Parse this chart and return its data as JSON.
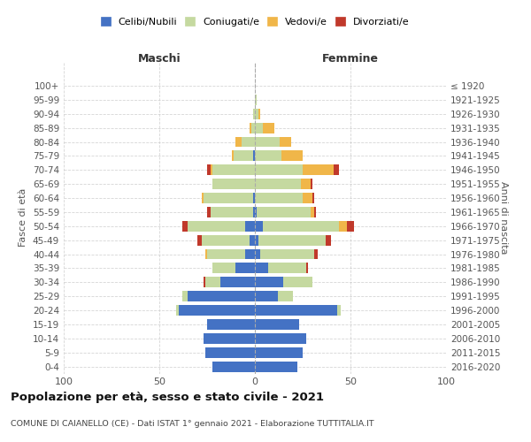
{
  "age_groups": [
    "0-4",
    "5-9",
    "10-14",
    "15-19",
    "20-24",
    "25-29",
    "30-34",
    "35-39",
    "40-44",
    "45-49",
    "50-54",
    "55-59",
    "60-64",
    "65-69",
    "70-74",
    "75-79",
    "80-84",
    "85-89",
    "90-94",
    "95-99",
    "100+"
  ],
  "birth_years": [
    "2016-2020",
    "2011-2015",
    "2006-2010",
    "2001-2005",
    "1996-2000",
    "1991-1995",
    "1986-1990",
    "1981-1985",
    "1976-1980",
    "1971-1975",
    "1966-1970",
    "1961-1965",
    "1956-1960",
    "1951-1955",
    "1946-1950",
    "1941-1945",
    "1936-1940",
    "1931-1935",
    "1926-1930",
    "1921-1925",
    "≤ 1920"
  ],
  "maschi": {
    "celibi": [
      22,
      26,
      27,
      25,
      40,
      35,
      18,
      10,
      5,
      3,
      5,
      1,
      1,
      0,
      0,
      1,
      0,
      0,
      0,
      0,
      0
    ],
    "coniugati": [
      0,
      0,
      0,
      0,
      1,
      3,
      8,
      12,
      20,
      25,
      30,
      22,
      26,
      22,
      22,
      10,
      7,
      2,
      1,
      0,
      0
    ],
    "vedovi": [
      0,
      0,
      0,
      0,
      0,
      0,
      0,
      0,
      1,
      0,
      0,
      0,
      1,
      0,
      1,
      1,
      3,
      1,
      0,
      0,
      0
    ],
    "divorziati": [
      0,
      0,
      0,
      0,
      0,
      0,
      1,
      0,
      0,
      2,
      3,
      2,
      0,
      0,
      2,
      0,
      0,
      0,
      0,
      0,
      0
    ]
  },
  "femmine": {
    "celibi": [
      22,
      25,
      27,
      23,
      43,
      12,
      15,
      7,
      3,
      2,
      4,
      1,
      0,
      0,
      0,
      0,
      0,
      0,
      0,
      0,
      0
    ],
    "coniugati": [
      0,
      0,
      0,
      0,
      2,
      8,
      15,
      20,
      28,
      35,
      40,
      28,
      25,
      24,
      25,
      14,
      13,
      4,
      2,
      1,
      0
    ],
    "vedovi": [
      0,
      0,
      0,
      0,
      0,
      0,
      0,
      0,
      0,
      0,
      4,
      2,
      5,
      5,
      16,
      11,
      6,
      6,
      1,
      0,
      0
    ],
    "divorziati": [
      0,
      0,
      0,
      0,
      0,
      0,
      0,
      1,
      2,
      3,
      4,
      1,
      1,
      1,
      3,
      0,
      0,
      0,
      0,
      0,
      0
    ]
  },
  "colors": {
    "celibi": "#4472c4",
    "coniugati": "#c5d9a0",
    "vedovi": "#f0b649",
    "divorziati": "#c0392b"
  },
  "legend_labels": [
    "Celibi/Nubili",
    "Coniugati/e",
    "Vedovi/e",
    "Divorziati/e"
  ],
  "title": "Popolazione per età, sesso e stato civile - 2021",
  "subtitle": "COMUNE DI CAIANELLO (CE) - Dati ISTAT 1° gennaio 2021 - Elaborazione TUTTITALIA.IT",
  "xlabel_left": "Maschi",
  "xlabel_right": "Femmine",
  "ylabel_left": "Fasce di età",
  "ylabel_right": "Anni di nascita",
  "xlim": 100,
  "background_color": "#ffffff",
  "grid_color": "#cccccc"
}
